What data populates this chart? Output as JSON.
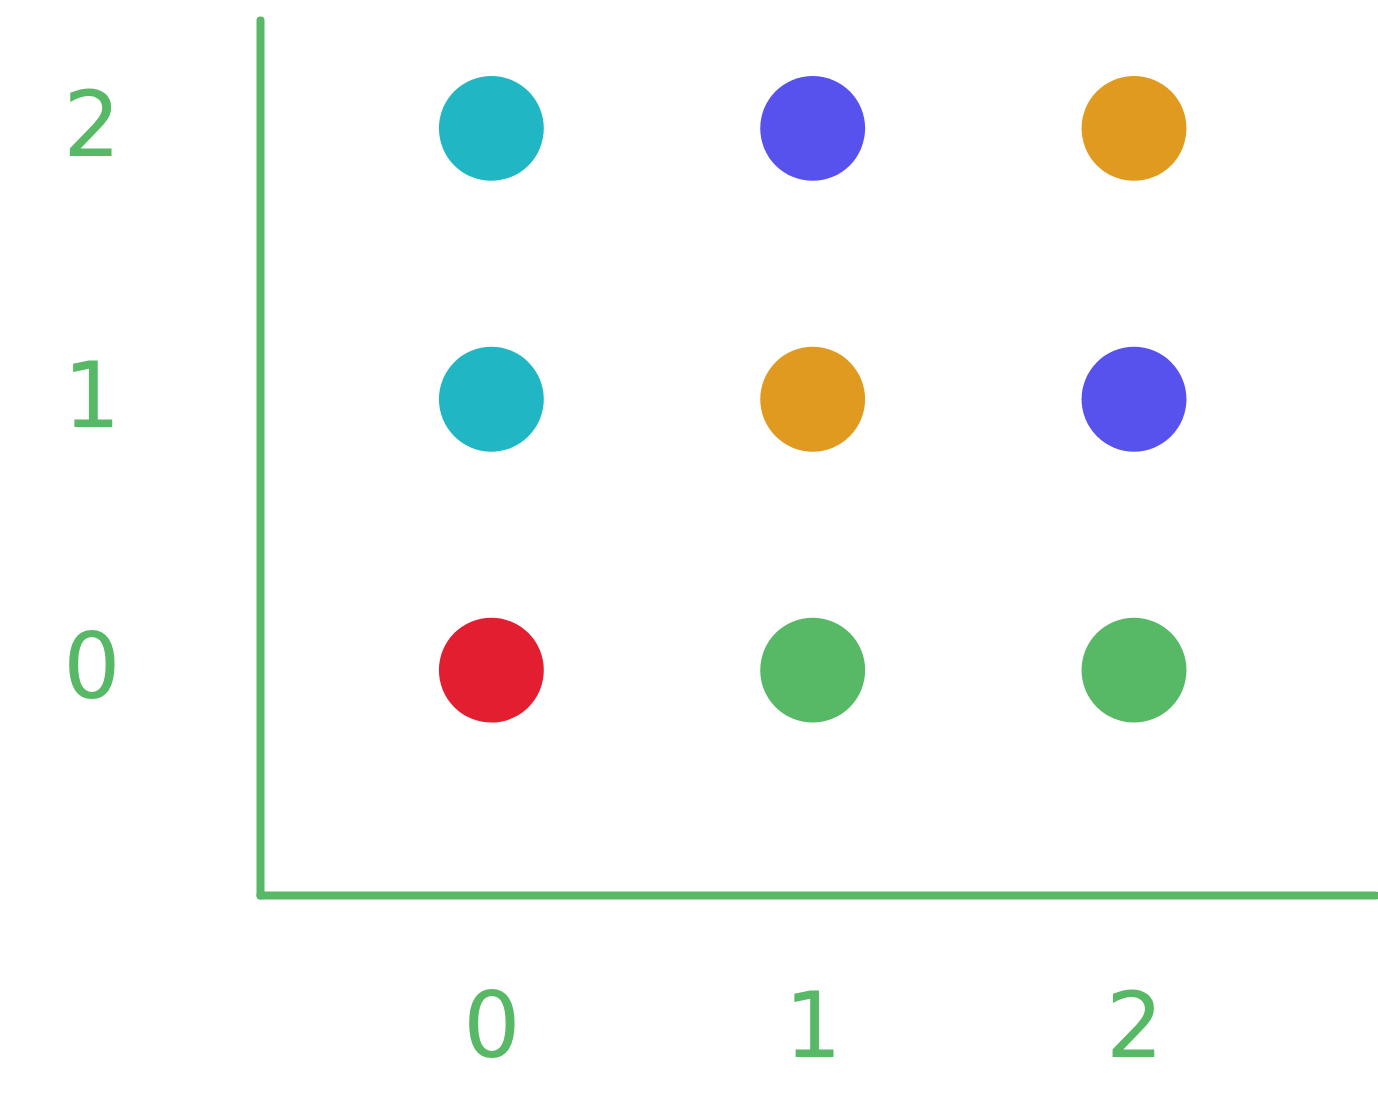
{
  "chart_data": {
    "type": "scatter",
    "x": [
      0,
      1,
      2,
      0,
      1,
      2,
      0,
      1,
      2
    ],
    "values": [
      0,
      0,
      0,
      1,
      1,
      1,
      2,
      2,
      2
    ],
    "colors": [
      "#e31e30",
      "#57b865",
      "#57b865",
      "#21b6c3",
      "#e09a20",
      "#5751ee",
      "#21b6c3",
      "#5751ee",
      "#e09a20"
    ],
    "xlim": [
      -0.72,
      2.75
    ],
    "ylim": [
      -0.83,
      2.4
    ],
    "xticks": [
      0,
      1,
      2
    ],
    "yticks": [
      0,
      1,
      2
    ],
    "marker": "circle",
    "grid": false
  }
}
